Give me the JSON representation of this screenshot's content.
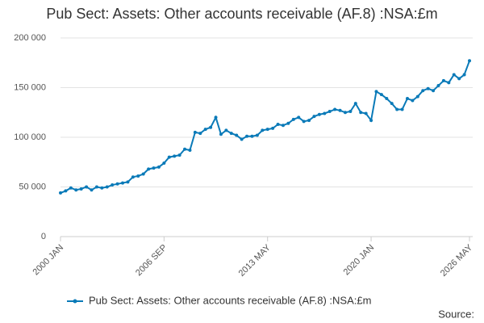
{
  "chart_data": {
    "type": "line",
    "title": "Pub Sect: Assets: Other accounts receivable (AF.8) :NSA:£m",
    "source_label": "Source:",
    "categories": [
      "2000 JAN",
      null,
      null,
      null,
      null,
      null,
      null,
      null,
      null,
      null,
      null,
      null,
      null,
      null,
      null,
      null,
      null,
      null,
      null,
      null,
      "2006 SEP",
      null,
      null,
      null,
      null,
      null,
      null,
      null,
      null,
      null,
      null,
      null,
      null,
      null,
      null,
      null,
      null,
      null,
      null,
      null,
      "2013 MAY",
      null,
      null,
      null,
      null,
      null,
      null,
      null,
      null,
      null,
      null,
      null,
      null,
      null,
      null,
      null,
      null,
      null,
      null,
      null,
      "2020 JAN",
      null,
      null,
      null,
      null,
      null,
      null,
      null,
      null,
      null,
      null,
      null,
      null,
      null,
      null,
      null,
      null,
      null,
      null,
      "2026 MAY"
    ],
    "series": [
      {
        "name": "Pub Sect: Assets: Other accounts receivable (AF.8) :NSA:£m",
        "color": "#0a7ab8",
        "values": [
          44000,
          46000,
          49000,
          47000,
          48000,
          50000,
          47000,
          50000,
          49000,
          50000,
          52000,
          53000,
          54000,
          55000,
          60000,
          61000,
          63000,
          68000,
          69000,
          70000,
          74000,
          80000,
          81000,
          82000,
          88000,
          87000,
          105000,
          104000,
          108000,
          110000,
          120000,
          103000,
          107000,
          104000,
          102000,
          98000,
          101000,
          101000,
          102000,
          107000,
          108000,
          109000,
          113000,
          112000,
          114000,
          118000,
          120000,
          116000,
          117000,
          121000,
          123000,
          124000,
          126000,
          128000,
          127000,
          125000,
          126000,
          134000,
          125000,
          124000,
          117000,
          146000,
          143000,
          139000,
          134000,
          128000,
          128000,
          139000,
          137000,
          141000,
          147000,
          149000,
          147000,
          152000,
          157000,
          155000,
          163000,
          159000,
          163000,
          177000
        ]
      }
    ],
    "ylim": [
      0,
      200000
    ],
    "yticks": [
      0,
      {
        "value": 50000,
        "label": "50 000"
      },
      {
        "value": 100000,
        "label": "100 000"
      },
      {
        "value": 150000,
        "label": "150 000"
      },
      {
        "value": 200000,
        "label": "200 000"
      }
    ],
    "grid": true
  }
}
